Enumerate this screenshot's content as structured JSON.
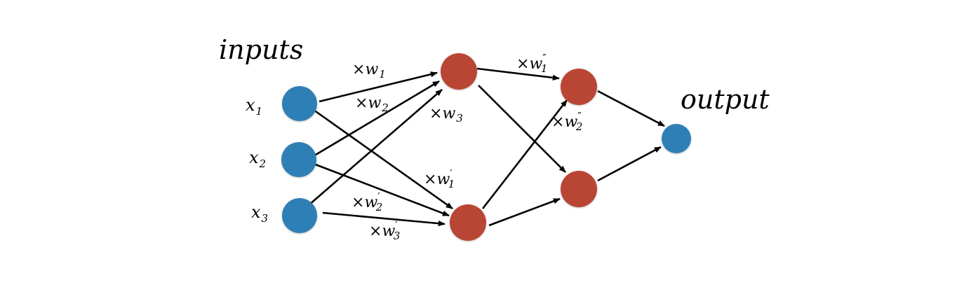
{
  "labels": {
    "inputs": "inputs",
    "output": "output"
  },
  "input_nodes": [
    {
      "name": "x",
      "sub": "1"
    },
    {
      "name": "x",
      "sub": "2"
    },
    {
      "name": "x",
      "sub": "3"
    }
  ],
  "weights": {
    "w1": {
      "prefix": "×",
      "base": "w",
      "sub": "1",
      "prime": ""
    },
    "w2": {
      "prefix": "×",
      "base": "w",
      "sub": "2",
      "prime": ""
    },
    "w3": {
      "prefix": "×",
      "base": "w",
      "sub": "3",
      "prime": ""
    },
    "w1p": {
      "prefix": "×",
      "base": "w",
      "sub": "1",
      "prime": "′"
    },
    "w2p": {
      "prefix": "×",
      "base": "w",
      "sub": "2",
      "prime": "′"
    },
    "w3p": {
      "prefix": "×",
      "base": "w",
      "sub": "3",
      "prime": "′"
    },
    "w1pp": {
      "prefix": "×",
      "base": "w",
      "sub": "1",
      "prime": "″"
    },
    "w2pp": {
      "prefix": "×",
      "base": "w",
      "sub": "2",
      "prime": "″"
    }
  },
  "colors": {
    "input_node": "#2f7fb5",
    "hidden_node": "#b94535",
    "output_node": "#2f7fb5",
    "edge": "#000000"
  }
}
